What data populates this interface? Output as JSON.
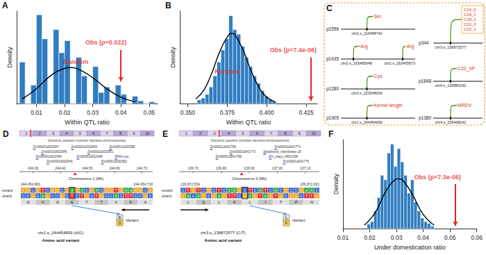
{
  "chart_data": [
    {
      "type": "histogram",
      "panel_label": "A",
      "x_label": "Within QTL ratio",
      "y_label": "Density",
      "bins": [
        0.004,
        0.006,
        0.008,
        0.01,
        0.012,
        0.014,
        0.016,
        0.018,
        0.02,
        0.022,
        0.024,
        0.026,
        0.028,
        0.03,
        0.032,
        0.034,
        0.036,
        0.038,
        0.04,
        0.042,
        0.044,
        0.046,
        0.048,
        0.05,
        0.052
      ],
      "values": [
        45,
        0,
        20,
        96,
        70,
        0,
        80,
        55,
        68,
        0,
        50,
        30,
        0,
        40,
        12,
        18,
        0,
        20,
        10,
        0,
        8,
        3,
        0,
        2
      ],
      "color": "#2f7dc0",
      "xlim": [
        0.003,
        0.053
      ],
      "xticks": [
        0.01,
        0.02,
        0.03,
        0.04,
        0.05
      ],
      "ylim": [
        0,
        100
      ],
      "tick_labels": "x",
      "grid": false,
      "overlay": {
        "type": "line",
        "color": "#000000",
        "x": [
          0.005,
          0.01,
          0.015,
          0.02,
          0.022,
          0.025,
          0.03,
          0.035,
          0.04,
          0.045
        ],
        "values": [
          5,
          16,
          30,
          38,
          39,
          37,
          28,
          16,
          7,
          2
        ]
      },
      "annotations": [
        {
          "text": "Random",
          "x": 0.024,
          "y": 45,
          "color": "#e3261f"
        },
        {
          "text": "Obs (p=0.022)",
          "x": 0.04,
          "y": 58,
          "arrow_to": 24,
          "color": "#e3261f"
        }
      ]
    },
    {
      "type": "histogram",
      "panel_label": "B",
      "x_label": "Within QTL ratio",
      "y_label": "Density",
      "bins": [
        0.356,
        0.3585,
        0.361,
        0.3635,
        0.366,
        0.3685,
        0.371,
        0.3735,
        0.376,
        0.3785,
        0.381,
        0.3835,
        0.386,
        0.3885,
        0.391,
        0.3935,
        0.396,
        0.3985,
        0.401,
        0.4035,
        0.406
      ],
      "values": [
        4,
        6,
        10,
        18,
        30,
        45,
        58,
        70,
        95,
        80,
        75,
        62,
        50,
        40,
        30,
        22,
        14,
        8,
        5,
        3
      ],
      "color": "#2f7dc0",
      "xlim": [
        0.345,
        0.432
      ],
      "xticks": [
        {
          "value": 0.35,
          "label": "0.350"
        },
        0.375,
        {
          "value": 0.4,
          "label": "0.400"
        },
        0.425
      ],
      "ylim": [
        0,
        100
      ],
      "tick_labels": "x",
      "grid": false,
      "overlay": {
        "type": "line",
        "color": "#000000",
        "x": [
          0.355,
          0.36,
          0.365,
          0.37,
          0.375,
          0.378,
          0.38,
          0.385,
          0.39,
          0.395,
          0.4,
          0.405
        ],
        "values": [
          5,
          14,
          32,
          55,
          72,
          76,
          74,
          58,
          36,
          18,
          7,
          2
        ]
      },
      "annotations": [
        {
          "text": "Random",
          "x": 0.375,
          "y": 35,
          "color": "#e3261f"
        },
        {
          "text": "Obs (p=7.4e-06)",
          "x": 0.428,
          "y": 50,
          "arrow_to": 3,
          "color": "#e3261f"
        }
      ]
    },
    {
      "type": "histogram",
      "panel_label": "F",
      "x_label": "Under domestication ratio",
      "y_label": "Density",
      "bins": [
        0.019,
        0.02025,
        0.0215,
        0.02275,
        0.024,
        0.02525,
        0.0265,
        0.02775,
        0.029,
        0.03025,
        0.0315,
        0.03275,
        0.034,
        0.03525,
        0.0365,
        0.03775,
        0.039,
        0.04025,
        0.0415,
        0.04275,
        0.044
      ],
      "values": [
        5,
        8,
        20,
        35,
        60,
        55,
        85,
        95,
        70,
        90,
        75,
        60,
        40,
        55,
        30,
        20,
        12,
        8,
        6,
        3
      ],
      "color": "#2f7dc0",
      "xlim": [
        0.01,
        0.06
      ],
      "xticks": [
        0.01,
        0.02,
        0.03,
        0.04,
        0.05,
        0.06
      ],
      "ylim": [
        0,
        100
      ],
      "tick_labels": "x",
      "grid": false,
      "overlay": {
        "type": "line",
        "color": "#000000",
        "x": [
          0.018,
          0.022,
          0.026,
          0.029,
          0.031,
          0.033,
          0.036,
          0.04,
          0.044
        ],
        "values": [
          4,
          18,
          42,
          54,
          56,
          52,
          38,
          16,
          4
        ]
      },
      "annotations": [
        {
          "text": "Obs (p=7.3e-06)",
          "x": 0.052,
          "y": 50,
          "arrow_to": 3,
          "color": "#e3261f"
        }
      ]
    }
  ],
  "panel_c": {
    "panel_label": "C",
    "groups": [
      {
        "peak": "p1556",
        "snps": [
          {
            "id": "chr2.s_116468742",
            "traits": [
              "Ser"
            ]
          }
        ]
      },
      {
        "peak": "p1435",
        "snps": [
          {
            "id": "chr2.s_163465648",
            "traits": [
              "Arg"
            ]
          },
          {
            "id": "chr2.s_163465673",
            "traits": [
              "Arg"
            ]
          }
        ]
      },
      {
        "peak": "p1280",
        "snps": [
          {
            "id": "chr3.s_223548206",
            "traits": [
              "Cys"
            ]
          }
        ]
      },
      {
        "peak": "p1905",
        "snps": [
          {
            "id": "chr1.s_244454699",
            "traits": [
              "Kernel length"
            ]
          }
        ]
      },
      {
        "peak": "p344",
        "snps": [
          {
            "id": "chr3.s_136872577",
            "traits": [
              "C16_0",
              "C18_1",
              "C18_2",
              "C20_0",
              "C22_1"
            ]
          }
        ]
      },
      {
        "peak": "p1848",
        "snps": [
          {
            "id": "chr4.s_130883192",
            "traits": [
              "C22_0P"
            ]
          }
        ]
      },
      {
        "peak": "p1380",
        "snps": [
          {
            "id": "chr4.s_155468242",
            "traits": [
              "MRDV"
            ]
          }
        ]
      }
    ]
  },
  "panel_d": {
    "panel_label": "D",
    "ideogram_title": "Genomic position (number denotes chromosomes)",
    "chromosomes": [
      1,
      2,
      3,
      4,
      5,
      6,
      7,
      8,
      9,
      10
    ],
    "highlight_chromosome": 1,
    "genes": [
      {
        "label": "Zm00001d032947",
        "x": 244.3,
        "row": 0
      },
      {
        "label": "Zm00001d032949",
        "x": 244.44,
        "row": 0
      },
      {
        "label": "Zm00001d032958",
        "x": 244.58,
        "row": 0
      },
      {
        "label": "Zm00001d032945",
        "x": 244.33,
        "row": 1
      },
      {
        "label": "Zm00001d032951",
        "x": 244.5,
        "row": 1
      },
      {
        "label": "Zm00001d032944",
        "x": 244.31,
        "row": 2
      },
      {
        "label": "Zm00001d032948",
        "x": 244.46,
        "row": 2
      },
      {
        "label": "tRNA-Leu",
        "x": 244.6,
        "row": 2
      },
      {
        "label": "Zm00001d032946",
        "x": 244.35,
        "row": 3
      },
      {
        "label": "Zm00001d032952",
        "x": 244.55,
        "row": 3
      }
    ],
    "axis_label": "Chromosome 1 (Mb)",
    "xlim": [
      244.25,
      244.74
    ],
    "xticks": [
      {
        "value": 244.3,
        "label": "244.30"
      },
      {
        "value": 244.4,
        "label": "244.40"
      },
      {
        "value": 244.5,
        "label": "244.50"
      },
      {
        "value": 244.6,
        "label": "244.60"
      },
      {
        "value": 244.7,
        "label": "244.70"
      }
    ],
    "variant_mb": 244.4547,
    "sequence_start": "244,454,660",
    "sequence_end": "244,454,718",
    "strand_labels": [
      "+strand",
      "-strand"
    ],
    "plus_strand": "GGCGTCGGCGAGACGACGGTGAAGGCG",
    "minus_strand": "CCGCAGCCGCTCTGCTGCCACTTCCGC",
    "amino_acids": [
      "G",
      "V",
      "G",
      "E",
      "T",
      "T",
      "V",
      "K",
      "A"
    ],
    "variant_index": 10,
    "variant_amino_acids": [
      "E",
      "G"
    ],
    "direction": "left",
    "snp_label": "chr1.s_244454699 (A/G)",
    "caption": "Amino acid variant",
    "variant_label": "Variant"
  },
  "panel_e": {
    "panel_label": "E",
    "ideogram_title": "Genomic position (number denotes chromosomes)",
    "chromosomes": [
      1,
      2,
      3,
      4,
      5,
      6,
      7,
      8,
      9,
      10
    ],
    "highlight_chromosome": 3,
    "genes": [
      {
        "label": "Zm00001d041768",
        "x": 136.76,
        "row": 0
      },
      {
        "label": "Zm00001d041773",
        "x": 136.99,
        "row": 0
      },
      {
        "label": "Zm00001d041770",
        "x": 136.83,
        "row": 1
      },
      {
        "label": "glutathione_transferase 18",
        "x": 136.95,
        "row": 1
      },
      {
        "label": "Zm00001d041769",
        "x": 136.78,
        "row": 2
      },
      {
        "label": "Zm_mays_ARGOS8",
        "x": 136.97,
        "row": 2
      },
      {
        "label": "Zm00001d041775",
        "x": 137.02,
        "row": 3
      }
    ],
    "axis_label": "Chromosome 3 (Mb)",
    "xlim": [
      136.65,
      137.15
    ],
    "xticks": [
      {
        "value": 136.7,
        "label": "136.70"
      },
      {
        "value": 136.8,
        "label": "136.80"
      },
      {
        "value": 136.9,
        "label": "136.90"
      },
      {
        "value": 137.0,
        "label": "137.00"
      },
      {
        "value": 137.1,
        "label": "137.10"
      }
    ],
    "variant_mb": 136.8726,
    "sequence_start": "136,872,534",
    "sequence_end": "136,872,621",
    "strand_labels": [
      "+strand",
      "-strand"
    ],
    "plus_strand": "CTGTCGCTCAAGCTCATCACGCCGAAC",
    "minus_strand": "GACAGCGAGTTCGAGTAGTGCGGCTTG",
    "amino_acids": [
      "L",
      "S",
      "L",
      "K",
      "L",
      "I",
      "T",
      "P",
      "N"
    ],
    "variant_index": 12,
    "variant_amino_acids": [
      "L",
      "F"
    ],
    "direction": "right",
    "snp_label": "chr3.s_136872577 (C/T)",
    "caption": "Amino acid variant",
    "variant_label": "Variant"
  }
}
